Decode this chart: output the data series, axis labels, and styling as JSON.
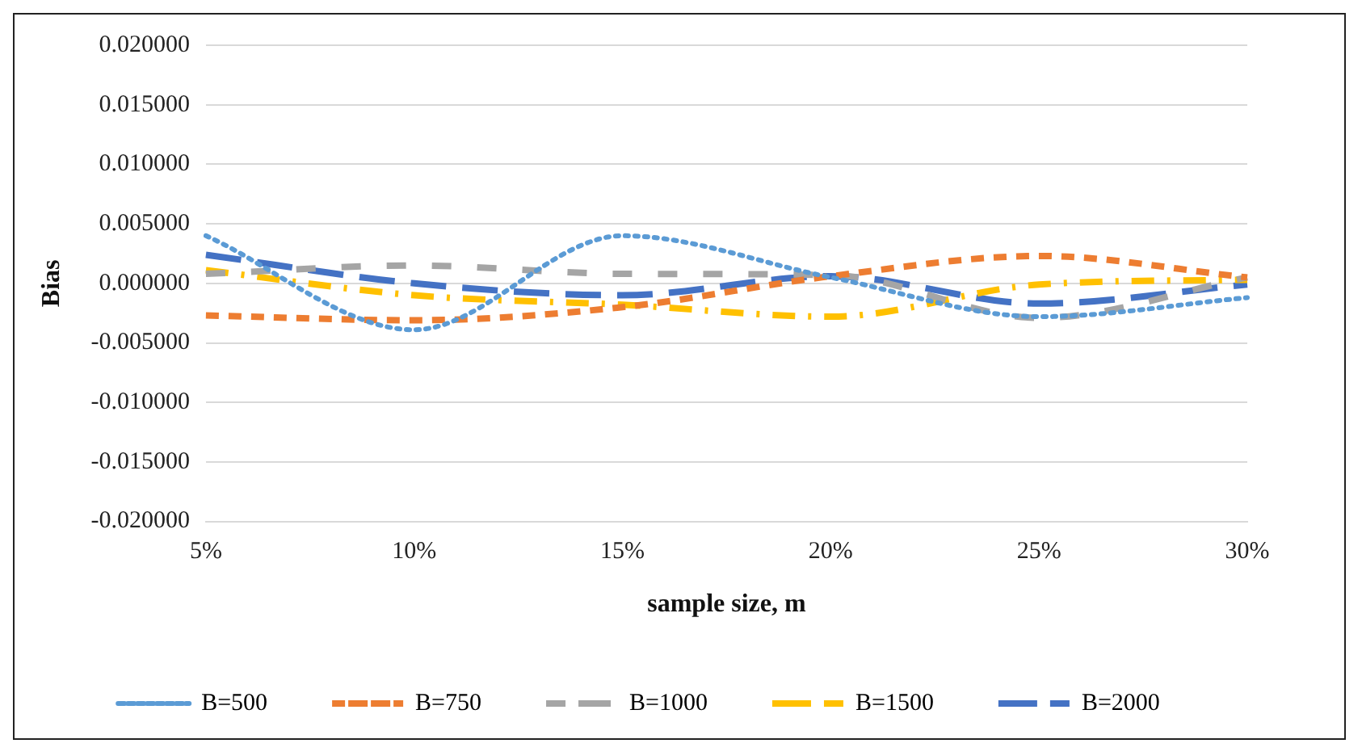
{
  "chart_data": {
    "type": "line",
    "xlabel": "sample size, m",
    "ylabel": "Bias",
    "categories": [
      "5%",
      "10%",
      "15%",
      "20%",
      "25%",
      "30%"
    ],
    "series": [
      {
        "name": "B=500",
        "color": "#5b9bd5",
        "line_style": "dotted",
        "values": [
          0.004,
          -0.0039,
          0.004,
          0.0005,
          -0.0028,
          -0.0012
        ]
      },
      {
        "name": "B=750",
        "color": "#ed7d31",
        "line_style": "dashed",
        "values": [
          -0.0027,
          -0.0031,
          -0.002,
          0.0006,
          0.0023,
          0.0005
        ]
      },
      {
        "name": "B=1000",
        "color": "#a5a5a5",
        "line_style": "dashed",
        "values": [
          0.0008,
          0.0015,
          0.0008,
          0.0007,
          -0.0029,
          0.0005
        ]
      },
      {
        "name": "B=1500",
        "color": "#ffc000",
        "line_style": "dashed",
        "values": [
          0.0011,
          -0.001,
          -0.0018,
          -0.0028,
          -0.0001,
          0.0003
        ]
      },
      {
        "name": "B=2000",
        "color": "#4472c4",
        "line_style": "dashed",
        "values": [
          0.0024,
          0.0,
          -0.001,
          0.0006,
          -0.0017,
          -0.0001
        ]
      }
    ],
    "ylim": [
      -0.02,
      0.02
    ],
    "yticks": [
      {
        "value": -0.02,
        "label": "-0.020000"
      },
      {
        "value": -0.015,
        "label": "-0.015000"
      },
      {
        "value": -0.01,
        "label": "-0.010000"
      },
      {
        "value": -0.005,
        "label": "-0.005000"
      },
      {
        "value": 0,
        "label": "0.000000"
      },
      {
        "value": 0.005,
        "label": "0.005000"
      },
      {
        "value": 0.01,
        "label": "0.010000"
      },
      {
        "value": 0.015,
        "label": "0.015000"
      },
      {
        "value": 0.02,
        "label": "0.020000"
      }
    ],
    "grid": "y",
    "legend": "bottom",
    "marker": "none"
  }
}
